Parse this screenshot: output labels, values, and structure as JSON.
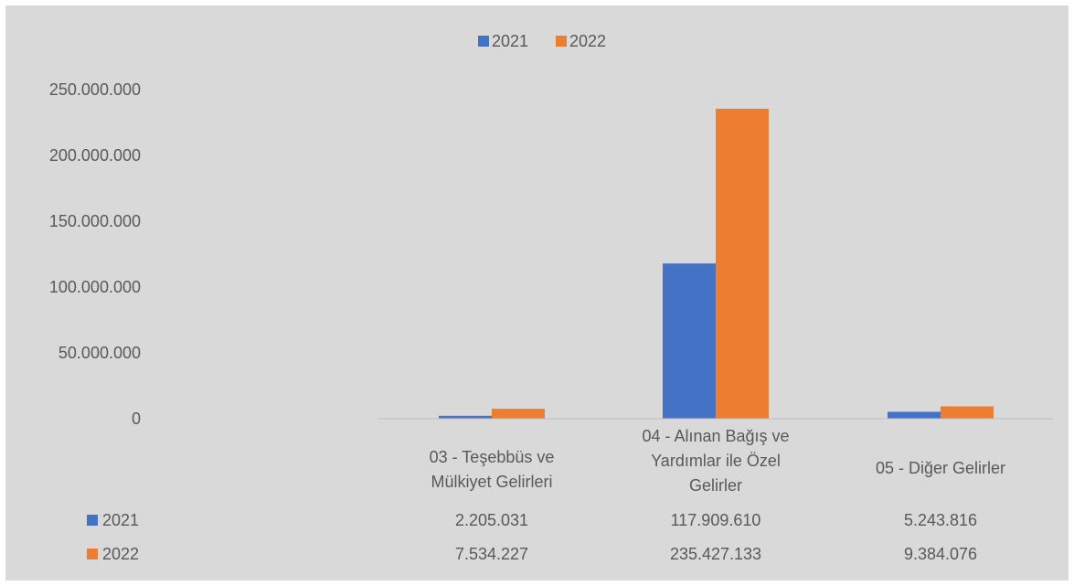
{
  "chart_data": {
    "type": "bar",
    "title": "",
    "xlabel": "",
    "ylabel": "",
    "ylim": [
      0,
      250000000
    ],
    "yticks": [
      0,
      50000000,
      100000000,
      150000000,
      200000000,
      250000000
    ],
    "ytick_labels": [
      "0",
      "50.000.000",
      "100.000.000",
      "150.000.000",
      "200.000.000",
      "250.000.000"
    ],
    "categories": [
      [
        "03 - Teşebbüs ve",
        "Mülkiyet Gelirleri"
      ],
      [
        "04 - Alınan Bağış ve",
        "Yardımlar ile Özel",
        "Gelirler"
      ],
      [
        "05 - Diğer Gelirler"
      ]
    ],
    "series": [
      {
        "name": "2021",
        "color": "#4472c4",
        "values": [
          2205031,
          117909610,
          5243816
        ],
        "labels": [
          "2.205.031",
          "117.909.610",
          "5.243.816"
        ]
      },
      {
        "name": "2022",
        "color": "#ed7d31",
        "values": [
          7534227,
          235427133,
          9384076
        ],
        "labels": [
          "7.534.227",
          "235.427.133",
          "9.384.076"
        ]
      }
    ],
    "legend": "top-center",
    "grid": false,
    "data_table": true
  }
}
